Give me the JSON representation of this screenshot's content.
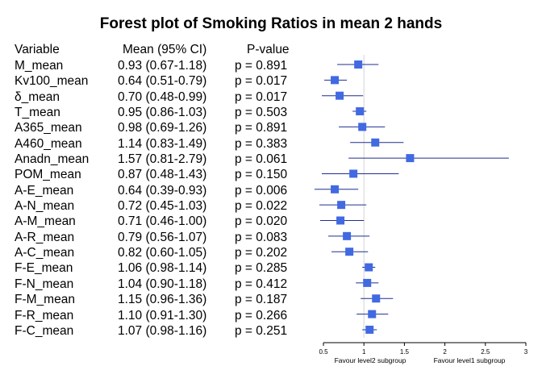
{
  "chart_data": {
    "type": "forest",
    "title": "Forest plot of Smoking Ratios in mean 2 hands",
    "column_headers": {
      "variable": "Variable",
      "mean": "Mean (95% CI)",
      "pvalue": "P-value"
    },
    "rows": [
      {
        "variable": "M_mean",
        "ci_text": "0.93 (0.67-1.18)",
        "p_text": "p = 0.891",
        "mean": 0.93,
        "lower": 0.67,
        "upper": 1.18
      },
      {
        "variable": "Kv100_mean",
        "ci_text": "0.64 (0.51-0.79)",
        "p_text": "p = 0.017",
        "mean": 0.64,
        "lower": 0.51,
        "upper": 0.79
      },
      {
        "variable": "δ_mean",
        "ci_text": "0.70 (0.48-0.99)",
        "p_text": "p = 0.017",
        "mean": 0.7,
        "lower": 0.48,
        "upper": 0.99
      },
      {
        "variable": "T_mean",
        "ci_text": "0.95 (0.86-1.03)",
        "p_text": "p = 0.503",
        "mean": 0.95,
        "lower": 0.86,
        "upper": 1.03
      },
      {
        "variable": "A365_mean",
        "ci_text": "0.98 (0.69-1.26)",
        "p_text": "p = 0.891",
        "mean": 0.98,
        "lower": 0.69,
        "upper": 1.26
      },
      {
        "variable": "A460_mean",
        "ci_text": "1.14 (0.83-1.49)",
        "p_text": "p = 0.383",
        "mean": 1.14,
        "lower": 0.83,
        "upper": 1.49
      },
      {
        "variable": "Anadn_mean",
        "ci_text": "1.57 (0.81-2.79)",
        "p_text": "p = 0.061",
        "mean": 1.57,
        "lower": 0.81,
        "upper": 2.79
      },
      {
        "variable": "POM_mean",
        "ci_text": "0.87 (0.48-1.43)",
        "p_text": "p = 0.150",
        "mean": 0.87,
        "lower": 0.48,
        "upper": 1.43
      },
      {
        "variable": "A-E_mean",
        "ci_text": "0.64 (0.39-0.93)",
        "p_text": "p = 0.006",
        "mean": 0.64,
        "lower": 0.39,
        "upper": 0.93
      },
      {
        "variable": "A-N_mean",
        "ci_text": "0.72 (0.45-1.03)",
        "p_text": "p = 0.022",
        "mean": 0.72,
        "lower": 0.45,
        "upper": 1.03
      },
      {
        "variable": "A-M_mean",
        "ci_text": "0.71 (0.46-1.00)",
        "p_text": "p = 0.020",
        "mean": 0.71,
        "lower": 0.46,
        "upper": 1.0
      },
      {
        "variable": "A-R_mean",
        "ci_text": "0.79 (0.56-1.07)",
        "p_text": "p = 0.083",
        "mean": 0.79,
        "lower": 0.56,
        "upper": 1.07
      },
      {
        "variable": "A-C_mean",
        "ci_text": "0.82 (0.60-1.05)",
        "p_text": "p = 0.202",
        "mean": 0.82,
        "lower": 0.6,
        "upper": 1.05
      },
      {
        "variable": "F-E_mean",
        "ci_text": "1.06 (0.98-1.14)",
        "p_text": "p = 0.285",
        "mean": 1.06,
        "lower": 0.98,
        "upper": 1.14
      },
      {
        "variable": "F-N_mean",
        "ci_text": "1.04 (0.90-1.18)",
        "p_text": "p = 0.412",
        "mean": 1.04,
        "lower": 0.9,
        "upper": 1.18
      },
      {
        "variable": "F-M_mean",
        "ci_text": "1.15 (0.96-1.36)",
        "p_text": "p = 0.187",
        "mean": 1.15,
        "lower": 0.96,
        "upper": 1.36
      },
      {
        "variable": "F-R_mean",
        "ci_text": "1.10 (0.91-1.30)",
        "p_text": "p = 0.266",
        "mean": 1.1,
        "lower": 0.91,
        "upper": 1.3
      },
      {
        "variable": "F-C_mean",
        "ci_text": "1.07 (0.98-1.16)",
        "p_text": "p = 0.251",
        "mean": 1.07,
        "lower": 0.98,
        "upper": 1.16
      }
    ],
    "x_ticks": [
      0.5,
      1,
      1.5,
      2,
      2.5,
      3
    ],
    "xlim": [
      0.5,
      3
    ],
    "reference_line": 1,
    "xlabel_left": "Favour level2 subgroup",
    "xlabel_right": "Favour level1 subgroup",
    "colors": {
      "marker": "#4169e1",
      "ci_line": "#1f2f8f",
      "reference_line": "#d3d3d3",
      "axis": "#000000"
    }
  }
}
